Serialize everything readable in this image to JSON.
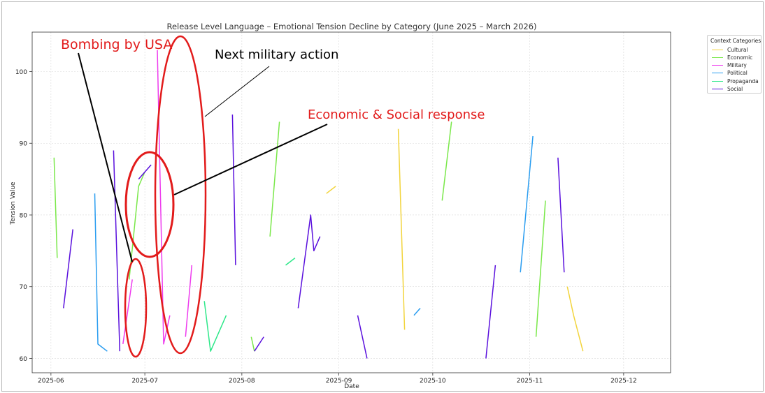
{
  "chart_data": {
    "type": "line",
    "title": "Release Level Language – Emotional Tension Decline by Category (June 2025 – March 2026)",
    "xlabel": "Date",
    "ylabel": "Tension Value",
    "xlim": [
      "2025-05-26",
      "2025-12-16"
    ],
    "ylim": [
      58,
      105.5
    ],
    "x_ticks": [
      "2025-06",
      "2025-07",
      "2025-08",
      "2025-09",
      "2025-10",
      "2025-11",
      "2025-12"
    ],
    "y_ticks": [
      60,
      70,
      80,
      90,
      100
    ],
    "grid": true,
    "legend_title": "Context Categories",
    "legend_position": "upper-right-outside",
    "series": [
      {
        "name": "Cultural",
        "color": "#f2d43c",
        "segments": [
          [
            [
              "2025-08-28",
              83
            ],
            [
              "2025-08-31",
              84
            ]
          ],
          [
            [
              "2025-09-20",
              92
            ],
            [
              "2025-09-22",
              64
            ]
          ],
          [
            [
              "2025-11-13",
              70
            ],
            [
              "2025-11-15",
              66
            ],
            [
              "2025-11-18",
              61
            ]
          ]
        ]
      },
      {
        "name": "Economic",
        "color": "#7ae84a",
        "segments": [
          [
            [
              "2025-06-02",
              88
            ],
            [
              "2025-06-03",
              74
            ]
          ],
          [
            [
              "2025-06-26",
              71
            ],
            [
              "2025-06-29",
              84
            ],
            [
              "2025-07-01",
              86
            ]
          ],
          [
            [
              "2025-08-04",
              63
            ],
            [
              "2025-08-05",
              61
            ]
          ],
          [
            [
              "2025-08-10",
              77
            ],
            [
              "2025-08-13",
              93
            ]
          ],
          [
            [
              "2025-10-04",
              82
            ],
            [
              "2025-10-07",
              93
            ]
          ],
          [
            [
              "2025-11-03",
              63
            ],
            [
              "2025-11-06",
              82
            ]
          ]
        ]
      },
      {
        "name": "Military",
        "color": "#ee3bee",
        "segments": [
          [
            [
              "2025-06-24",
              62
            ],
            [
              "2025-06-27",
              71
            ]
          ],
          [
            [
              "2025-07-05",
              103
            ],
            [
              "2025-07-07",
              62
            ],
            [
              "2025-07-09",
              66
            ]
          ],
          [
            [
              "2025-07-14",
              63
            ],
            [
              "2025-07-16",
              73
            ]
          ]
        ]
      },
      {
        "name": "Political",
        "color": "#2a9df0",
        "segments": [
          [
            [
              "2025-06-15",
              83
            ],
            [
              "2025-06-16",
              62
            ],
            [
              "2025-06-19",
              61
            ]
          ],
          [
            [
              "2025-09-25",
              66
            ],
            [
              "2025-09-27",
              67
            ]
          ],
          [
            [
              "2025-10-29",
              72
            ],
            [
              "2025-11-02",
              91
            ]
          ]
        ]
      },
      {
        "name": "Propaganda",
        "color": "#2ee88a",
        "segments": [
          [
            [
              "2025-07-20",
              68
            ],
            [
              "2025-07-22",
              61
            ],
            [
              "2025-07-27",
              66
            ]
          ],
          [
            [
              "2025-08-15",
              73
            ],
            [
              "2025-08-18",
              74
            ]
          ]
        ]
      },
      {
        "name": "Social",
        "color": "#5a10dd",
        "segments": [
          [
            [
              "2025-06-05",
              67
            ],
            [
              "2025-06-08",
              78
            ]
          ],
          [
            [
              "2025-06-21",
              89
            ],
            [
              "2025-06-23",
              61
            ]
          ],
          [
            [
              "2025-06-29",
              85
            ],
            [
              "2025-07-03",
              87
            ]
          ],
          [
            [
              "2025-07-29",
              94
            ],
            [
              "2025-07-30",
              73
            ]
          ],
          [
            [
              "2025-08-05",
              61
            ],
            [
              "2025-08-08",
              63
            ]
          ],
          [
            [
              "2025-08-19",
              67
            ],
            [
              "2025-08-23",
              80
            ],
            [
              "2025-08-24",
              75
            ],
            [
              "2025-08-26",
              77
            ]
          ],
          [
            [
              "2025-09-07",
              66
            ],
            [
              "2025-09-10",
              60
            ]
          ],
          [
            [
              "2025-10-18",
              60
            ],
            [
              "2025-10-21",
              73
            ]
          ],
          [
            [
              "2025-11-10",
              88
            ],
            [
              "2025-11-12",
              72
            ]
          ]
        ]
      }
    ],
    "annotations": [
      {
        "text": "Bombing by USA",
        "color": "#e21b1b",
        "anchor": [
          "2025-06-01",
          103
        ]
      },
      {
        "text": "Next military action",
        "color": "#000000",
        "anchor": [
          "2025-07-18",
          102
        ]
      },
      {
        "text": "Economic & Social response",
        "color": "#e21b1b",
        "anchor": [
          "2025-08-15",
          93.5
        ]
      }
    ]
  }
}
